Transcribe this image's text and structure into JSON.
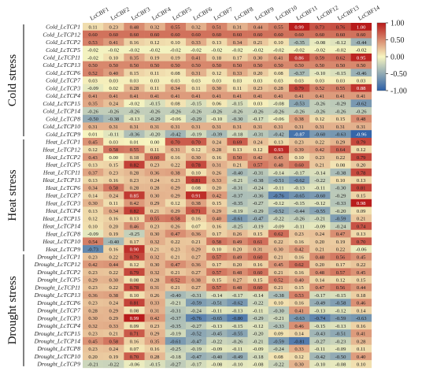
{
  "chart_data": {
    "type": "heatmap",
    "title": "",
    "x_labels": [
      "LcCBF1",
      "LcCBF2",
      "LcCBF3",
      "LcCBF4",
      "LcCBF5",
      "LcCBF6",
      "LcCBF7",
      "LcCBF8",
      "LcCBF9",
      "LcCBF10",
      "LcCBF11",
      "LcCBF12",
      "LcCBF13",
      "LcCBF14"
    ],
    "groups": [
      {
        "name": "Cold stress",
        "rows": [
          {
            "label": "Cold_LcTCP1",
            "values": [
              0.11,
              0.23,
              0.48,
              0.32,
              0.55,
              0.32,
              0.51,
              0.31,
              0.44,
              0.55,
              0.99,
              0.73,
              0.76,
              1.0
            ]
          },
          {
            "label": "Cold_LcTCP12",
            "values": [
              0.6,
              0.6,
              0.6,
              0.6,
              0.6,
              0.6,
              0.6,
              0.6,
              0.6,
              0.6,
              0.6,
              0.6,
              0.6,
              0.6
            ]
          },
          {
            "label": "Cold_LcTCP2",
            "values": [
              0.53,
              0.41,
              0.16,
              0.12,
              0.1,
              0.33,
              0.13,
              0.34,
              0.21,
              0.1,
              -0.35,
              -0.08,
              -0.12,
              -0.44
            ]
          },
          {
            "label": "Cold_LcTCP5",
            "values": [
              -0.02,
              -0.02,
              -0.02,
              -0.02,
              -0.02,
              -0.02,
              -0.02,
              -0.02,
              -0.02,
              -0.02,
              -0.02,
              -0.02,
              -0.02,
              -0.02
            ]
          },
          {
            "label": "Cold_LcTCP11",
            "values": [
              -0.02,
              0.1,
              0.35,
              0.19,
              0.19,
              0.41,
              0.18,
              0.17,
              0.3,
              0.41,
              0.86,
              0.59,
              0.62,
              0.95
            ]
          },
          {
            "label": "Cold_LcTCP13",
            "values": [
              0.5,
              0.5,
              0.5,
              0.5,
              0.5,
              0.5,
              0.5,
              0.5,
              0.5,
              0.5,
              0.5,
              0.5,
              0.5,
              0.5
            ]
          },
          {
            "label": "Cold_LcTCP6",
            "values": [
              0.52,
              0.4,
              0.15,
              0.11,
              0.08,
              0.31,
              0.12,
              0.33,
              0.2,
              0.08,
              -0.37,
              -0.1,
              -0.15,
              -0.46
            ]
          },
          {
            "label": "Cold_LcTCP7",
            "values": [
              0.03,
              0.03,
              0.03,
              0.03,
              0.03,
              0.03,
              0.03,
              0.03,
              0.03,
              0.03,
              0.03,
              0.03,
              0.03,
              0.03
            ]
          },
          {
            "label": "Cold_LcTCP3",
            "values": [
              -0.09,
              0.02,
              0.28,
              0.11,
              0.34,
              0.11,
              0.3,
              0.11,
              0.23,
              0.28,
              0.79,
              0.52,
              0.55,
              0.88
            ]
          },
          {
            "label": "Cold_LcTCP4",
            "values": [
              0.41,
              0.41,
              0.41,
              0.41,
              0.41,
              0.41,
              0.41,
              0.41,
              0.41,
              0.41,
              0.41,
              0.41,
              0.41,
              0.41
            ]
          },
          {
            "label": "Cold_LcTCP15",
            "values": [
              0.35,
              0.24,
              -0.02,
              -0.15,
              0.08,
              -0.15,
              0.06,
              -0.15,
              0.03,
              -0.08,
              -0.53,
              -0.26,
              -0.29,
              -0.62
            ]
          },
          {
            "label": "Cold_LcTCP14",
            "values": [
              -0.26,
              -0.26,
              -0.26,
              -0.26,
              -0.26,
              -0.26,
              -0.26,
              -0.26,
              -0.26,
              -0.26,
              -0.26,
              -0.26,
              -0.26,
              -0.26
            ]
          },
          {
            "label": "Cold_LcTCP8",
            "values": [
              -0.5,
              -0.38,
              -0.13,
              -0.29,
              -0.06,
              -0.29,
              -0.1,
              -0.3,
              -0.17,
              -0.06,
              0.38,
              0.12,
              0.15,
              0.48
            ]
          },
          {
            "label": "Cold_LcTCP10",
            "values": [
              0.31,
              0.31,
              0.31,
              0.31,
              0.31,
              0.31,
              0.31,
              0.31,
              0.31,
              0.31,
              0.31,
              0.31,
              0.31,
              0.31
            ]
          },
          {
            "label": "Cold_LcTCP9",
            "values": [
              0.01,
              -0.11,
              -0.36,
              -0.2,
              -0.42,
              -0.19,
              -0.39,
              -0.18,
              -0.31,
              -0.42,
              -0.87,
              -0.6,
              -0.63,
              -0.96
            ]
          }
        ]
      },
      {
        "name": "Heat stress",
        "rows": [
          {
            "label": "Heat_LcTCP1",
            "values": [
              0.45,
              0.03,
              0.01,
              0.0,
              0.7,
              0.7,
              0.24,
              0.69,
              0.24,
              0.13,
              0.23,
              0.22,
              0.29,
              0.79
            ]
          },
          {
            "label": "Heat_LcTCP12",
            "values": [
              0.12,
              0.58,
              0.55,
              0.11,
              0.31,
              0.12,
              0.28,
              0.13,
              0.12,
              0.93,
              0.39,
              0.42,
              0.64,
              0.12
            ]
          },
          {
            "label": "Heat_LcTCP2",
            "values": [
              0.43,
              0.0,
              0.18,
              0.6,
              0.16,
              0.3,
              0.16,
              0.5,
              0.42,
              0.45,
              0.1,
              0.23,
              0.22,
              0.79
            ]
          },
          {
            "label": "Heat_LcTCP5",
            "values": [
              0.13,
              0.15,
              0.82,
              0.23,
              0.22,
              0.78,
              0.31,
              0.21,
              0.57,
              0.48,
              0.6,
              0.21,
              0.08,
              0.2
            ]
          },
          {
            "label": "Heat_LcTCP11",
            "values": [
              0.37,
              0.23,
              0.28,
              0.36,
              0.38,
              0.1,
              0.26,
              -0.4,
              -0.31,
              -0.14,
              -0.17,
              -0.14,
              -0.38,
              0.78
            ]
          },
          {
            "label": "Heat_LcTCP13",
            "values": [
              0.13,
              0.16,
              0.23,
              0.24,
              0.23,
              0.81,
              0.33,
              -0.21,
              -0.38,
              -0.51,
              -0.62,
              -0.22,
              0.1,
              0.13
            ]
          },
          {
            "label": "Heat_LcTCP6",
            "values": [
              0.34,
              0.58,
              0.28,
              0.28,
              0.29,
              0.08,
              0.2,
              -0.31,
              -0.24,
              -0.11,
              -0.13,
              -0.11,
              -0.3,
              0.81
            ]
          },
          {
            "label": "Heat_LcTCP7",
            "values": [
              0.14,
              0.24,
              0.85,
              0.3,
              0.29,
              0.91,
              0.42,
              -0.37,
              -0.36,
              -0.76,
              -0.65,
              -0.6,
              -0.29,
              0.15
            ]
          },
          {
            "label": "Heat_LcTCP3",
            "values": [
              0.3,
              0.11,
              0.42,
              0.29,
              0.12,
              0.38,
              0.15,
              -0.35,
              -0.27,
              -0.12,
              -0.15,
              -0.12,
              -0.33,
              0.98
            ]
          },
          {
            "label": "Heat_LcTCP4",
            "values": [
              0.13,
              0.34,
              0.82,
              0.21,
              0.29,
              0.71,
              0.29,
              -0.19,
              -0.29,
              -0.52,
              -0.44,
              -0.55,
              -0.2,
              0.09
            ]
          },
          {
            "label": "Heat_LcTCP15",
            "values": [
              0.12,
              0.16,
              0.13,
              0.55,
              0.58,
              0.16,
              0.4,
              -0.61,
              -0.47,
              -0.22,
              -0.26,
              -0.21,
              -0.59,
              0.21
            ]
          },
          {
            "label": "Heat_LcTCP14",
            "values": [
              0.1,
              0.2,
              0.46,
              0.23,
              0.26,
              0.07,
              0.16,
              -0.25,
              -0.19,
              -0.09,
              -0.11,
              -0.09,
              -0.24,
              0.74
            ]
          },
          {
            "label": "Heat_LcTCP8",
            "values": [
              -0.09,
              0.19,
              -0.25,
              0.3,
              0.47,
              0.36,
              0.17,
              0.26,
              0.15,
              0.62,
              0.23,
              0.24,
              0.47,
              0.13
            ]
          },
          {
            "label": "Heat_LcTCP10",
            "values": [
              0.54,
              -0.4,
              0.17,
              0.32,
              0.22,
              0.21,
              0.58,
              0.49,
              0.61,
              0.22,
              0.16,
              0.2,
              0.19,
              0.7
            ]
          },
          {
            "label": "Heat_LcTCP9",
            "values": [
              -0.73,
              0.16,
              0.9,
              0.21,
              0.23,
              0.29,
              0.1,
              0.2,
              0.31,
              0.3,
              0.42,
              0.21,
              0.22,
              -0.06
            ]
          }
        ]
      },
      {
        "name": "Drought stress",
        "rows": [
          {
            "label": "Drought_LcTCP1",
            "values": [
              0.23,
              0.22,
              0.79,
              0.32,
              0.21,
              0.27,
              0.57,
              0.49,
              0.6,
              0.21,
              0.16,
              0.48,
              0.56,
              0.45
            ]
          },
          {
            "label": "Drought_LcTCP12",
            "values": [
              0.42,
              0.44,
              0.12,
              0.3,
              0.47,
              0.36,
              0.17,
              0.2,
              0.16,
              0.45,
              0.62,
              0.2,
              0.17,
              0.22
            ]
          },
          {
            "label": "Drought_LcTCP2",
            "values": [
              0.23,
              0.22,
              0.79,
              0.32,
              0.21,
              0.27,
              0.57,
              0.48,
              0.6,
              0.21,
              0.16,
              0.48,
              0.57,
              0.45
            ]
          },
          {
            "label": "Drought_LcTCP5",
            "values": [
              0.29,
              0.3,
              0.08,
              0.28,
              0.52,
              0.38,
              0.15,
              0.27,
              0.15,
              0.52,
              0.4,
              0.14,
              0.12,
              0.15
            ]
          },
          {
            "label": "Drought_LcTCP11",
            "values": [
              0.23,
              0.22,
              0.78,
              0.31,
              0.21,
              0.27,
              0.57,
              0.48,
              0.6,
              0.21,
              0.15,
              0.47,
              0.56,
              0.44
            ]
          },
          {
            "label": "Drought_LcTCP13",
            "values": [
              0.36,
              0.38,
              0.1,
              0.26,
              -0.4,
              -0.31,
              -0.14,
              -0.17,
              -0.14,
              -0.38,
              0.53,
              -0.17,
              -0.15,
              0.18
            ]
          },
          {
            "label": "Drought_LcTCP6",
            "values": [
              0.23,
              0.24,
              0.81,
              0.33,
              -0.21,
              -0.59,
              -0.51,
              -0.62,
              -0.22,
              0.1,
              0.16,
              -0.49,
              -0.58,
              0.46
            ]
          },
          {
            "label": "Drought_LcTCP7",
            "values": [
              0.28,
              0.29,
              0.08,
              0.31,
              -0.31,
              -0.24,
              -0.11,
              -0.13,
              -0.11,
              -0.3,
              0.41,
              -0.13,
              -0.12,
              0.14
            ]
          },
          {
            "label": "Drought_LcTCP3",
            "values": [
              0.3,
              0.29,
              0.99,
              0.42,
              -0.37,
              -0.76,
              -0.65,
              -0.8,
              -0.29,
              -0.21,
              -0.63,
              -0.74,
              -0.59,
              -0.63
            ]
          },
          {
            "label": "Drought_LcTCP4",
            "values": [
              0.32,
              0.33,
              0.09,
              0.23,
              -0.35,
              -0.27,
              -0.13,
              -0.15,
              -0.12,
              -0.33,
              0.46,
              -0.15,
              -0.13,
              0.16
            ]
          },
          {
            "label": "Drought_LcTCP15",
            "values": [
              0.23,
              0.21,
              0.71,
              0.29,
              -0.19,
              -0.52,
              -0.45,
              -0.55,
              -0.2,
              0.09,
              0.14,
              -0.43,
              -0.51,
              0.41
            ]
          },
          {
            "label": "Drought_LcTCP14",
            "values": [
              0.45,
              0.58,
              0.16,
              0.35,
              -0.61,
              -0.47,
              -0.22,
              -0.26,
              -0.21,
              -0.59,
              -0.81,
              -0.27,
              -0.23,
              0.28
            ]
          },
          {
            "label": "Drought_LcTCP8",
            "values": [
              0.23,
              0.24,
              0.07,
              0.16,
              -0.25,
              -0.19,
              -0.09,
              -0.11,
              -0.09,
              -0.24,
              0.33,
              -0.11,
              -0.09,
              0.11
            ]
          },
          {
            "label": "Drought_LcTCP10",
            "values": [
              0.2,
              0.19,
              0.7,
              0.28,
              -0.18,
              -0.47,
              -0.4,
              -0.49,
              -0.18,
              0.08,
              0.12,
              -0.42,
              -0.5,
              0.4
            ]
          },
          {
            "label": "Drought_LcTCP9",
            "values": [
              -0.21,
              -0.22,
              -0.06,
              -0.15,
              -0.27,
              -0.17,
              -0.08,
              -0.1,
              -0.08,
              -0.22,
              0.3,
              -0.1,
              -0.08,
              0.1
            ]
          }
        ]
      }
    ],
    "colorbar": {
      "range": [
        -1,
        1
      ],
      "ticks": [
        1.0,
        0.5,
        0.0,
        -0.5,
        -1.0
      ],
      "tick_labels": [
        "1.00",
        "0.50",
        "0.00",
        "-0.50",
        "-1.00"
      ],
      "colors": {
        "low": "#2c5fa8",
        "mid": "#f7f5c0",
        "high": "#b81a1a"
      }
    },
    "legend_placement": "right",
    "grid": false
  }
}
